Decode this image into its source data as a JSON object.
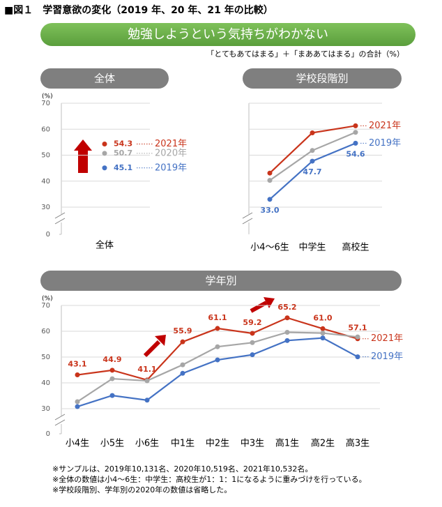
{
  "figure_title": "■図１　学習意欲の変化（2019 年、20 年、21 年の比較）",
  "banner": "勉強しようという気持ちがわかない",
  "subtitle": "「とてもあてはまる」＋「まああてはまる」の合計（%）",
  "footnotes": [
    "※サンプルは、2019年10,131名、2020年10,519名、2021年10,532名。",
    "※全体の数値は小4～6生：中学生：高校生が1：1：1になるように重みづけを行っている。",
    "※学校段階別、学年別の2020年の数値は省略した。"
  ],
  "chart_data": [
    {
      "type": "line",
      "title": "全体",
      "y_unit": "(%)",
      "categories": [
        "全体"
      ],
      "ylim": [
        0,
        70
      ],
      "yticks": [
        0,
        30,
        40,
        50,
        60,
        70
      ],
      "show_tick_labels": true,
      "axis_break": true,
      "grid": true,
      "series": [
        {
          "name": "2021年",
          "color": "#c9341b",
          "values": [
            54.3
          ]
        },
        {
          "name": "2020年",
          "color": "#a6a6a6",
          "values": [
            50.7
          ]
        },
        {
          "name": "2019年",
          "color": "#4472c4",
          "values": [
            45.1
          ]
        }
      ]
    },
    {
      "type": "line",
      "title": "学校段階別",
      "categories": [
        "小4～6生",
        "中学生",
        "高校生"
      ],
      "ylim": [
        0,
        70
      ],
      "yticks": [
        30,
        40,
        50,
        60,
        70
      ],
      "show_tick_labels": false,
      "axis_break": true,
      "grid": true,
      "series": [
        {
          "name": "2021年",
          "color": "#c9341b",
          "values": [
            43.1,
            58.6,
            61.3
          ]
        },
        {
          "color": "#a6a6a6",
          "values": [
            40.3,
            51.8,
            58.8
          ]
        },
        {
          "name": "2019年",
          "color": "#4472c4",
          "values": [
            33.0,
            47.7,
            54.6
          ],
          "value_labels": [
            "33.0",
            "47.7",
            "54.6"
          ]
        }
      ]
    },
    {
      "type": "line",
      "title": "学年別",
      "y_unit": "(%)",
      "categories": [
        "小4生",
        "小5生",
        "小6生",
        "中1生",
        "中2生",
        "中3生",
        "高1生",
        "高2生",
        "高3生"
      ],
      "ylim": [
        0,
        70
      ],
      "yticks": [
        0,
        30,
        40,
        50,
        60,
        70
      ],
      "show_tick_labels": true,
      "axis_break": true,
      "grid": true,
      "series": [
        {
          "name": "2021年",
          "color": "#c9341b",
          "values": [
            43.1,
            44.9,
            41.1,
            55.9,
            61.1,
            59.2,
            65.2,
            61.0,
            57.1
          ],
          "value_labels": [
            "43.1",
            "44.9",
            "41.1",
            "55.9",
            "61.1",
            "59.2",
            "65.2",
            "61.0",
            "57.1"
          ]
        },
        {
          "color": "#a6a6a6",
          "values": [
            32.7,
            41.6,
            40.8,
            47.0,
            54.0,
            55.6,
            59.6,
            59.3,
            57.8
          ]
        },
        {
          "name": "2019年",
          "color": "#4472c4",
          "values": [
            30.8,
            35.1,
            33.3,
            43.7,
            48.9,
            50.9,
            56.4,
            57.4,
            50.1
          ]
        }
      ]
    }
  ]
}
